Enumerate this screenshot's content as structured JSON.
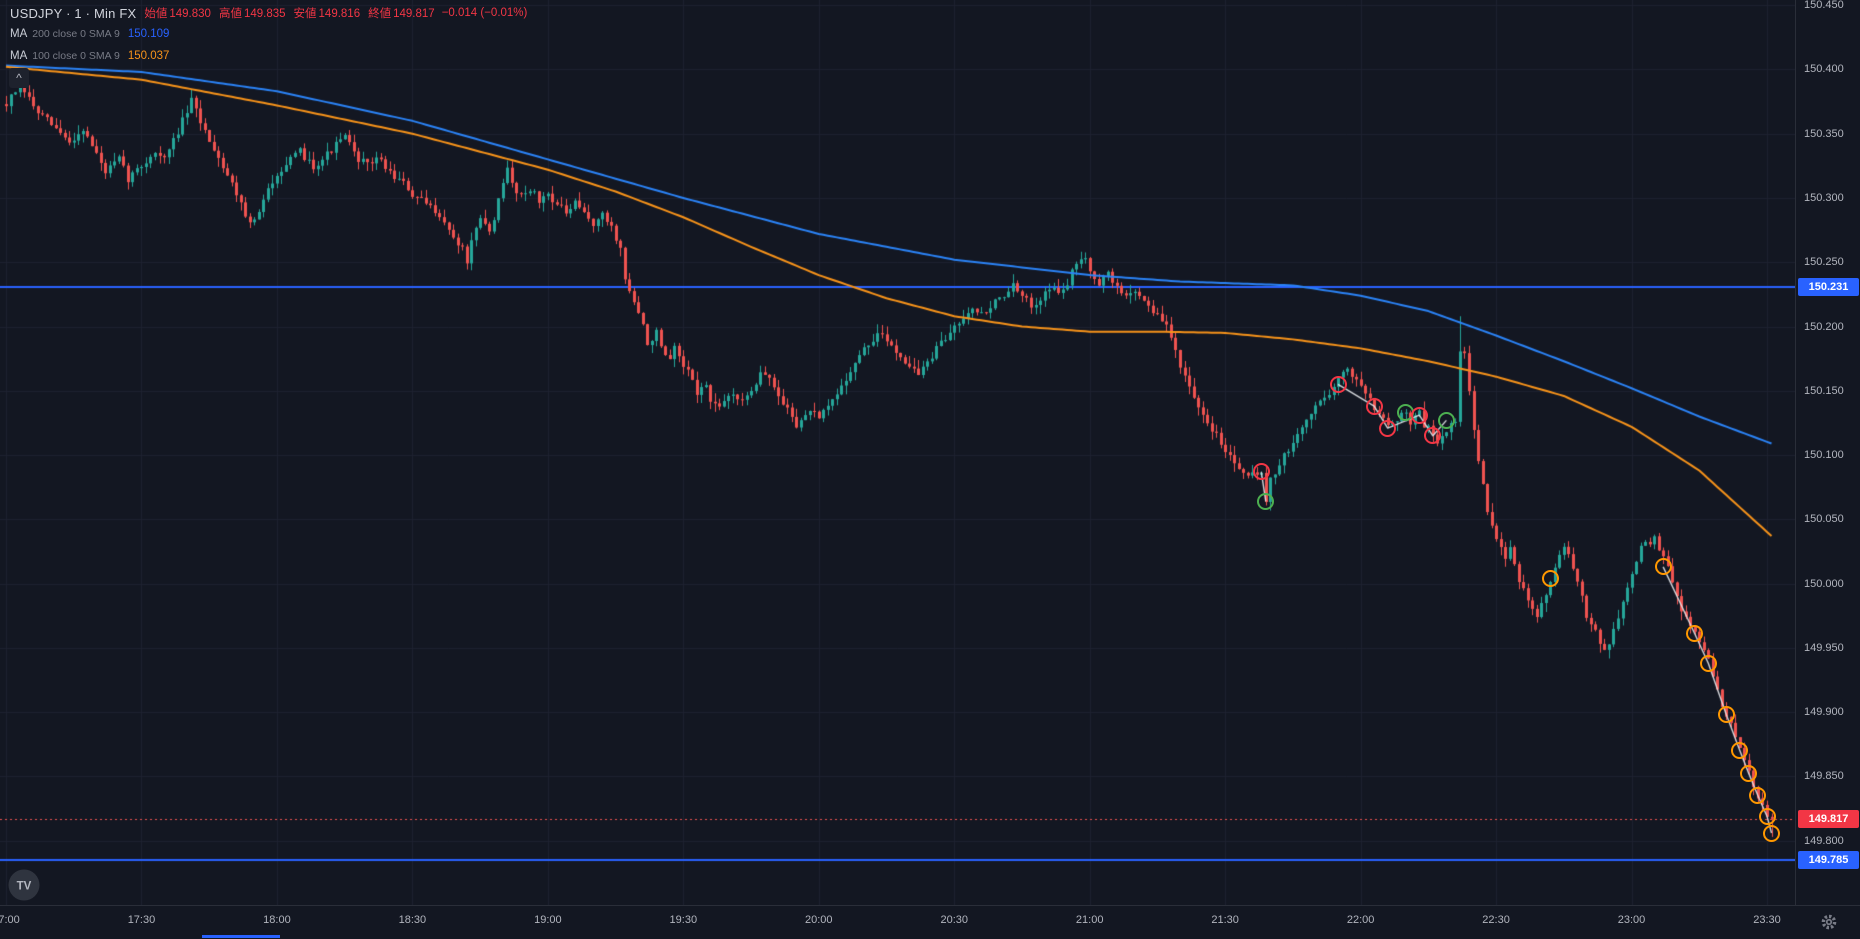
{
  "app": {
    "logo_text": "TV",
    "scroll_top_glyph": "^"
  },
  "legend": {
    "symbol_title": "USDJPY · 1 · Min FX",
    "ohlc": [
      {
        "label": "始値",
        "value": "149.830"
      },
      {
        "label": "高値",
        "value": "149.835"
      },
      {
        "label": "安値",
        "value": "149.816"
      },
      {
        "label": "終値",
        "value": "149.817"
      }
    ],
    "change": "−0.014 (−0.01%)",
    "indicators": [
      {
        "name": "MA",
        "params": "200 close 0 SMA 9",
        "value": "150.109"
      },
      {
        "name": "MA",
        "params": "100 close 0 SMA 9",
        "value": "150.037"
      }
    ]
  },
  "price_axis": {
    "ticks": [
      "150.450",
      "150.400",
      "150.350",
      "150.300",
      "150.250",
      "150.200",
      "150.150",
      "150.100",
      "150.050",
      "150.000",
      "149.950",
      "149.900",
      "149.850",
      "149.800"
    ],
    "labels": [
      {
        "value": "150.231",
        "bg": "#2962ff",
        "type": "hline"
      },
      {
        "value": "149.817",
        "bg": "#f23645",
        "type": "last-price"
      },
      {
        "value": "149.785",
        "bg": "#2962ff",
        "type": "hline"
      }
    ]
  },
  "time_axis": {
    "ticks": [
      "17:00",
      "17:30",
      "18:00",
      "18:30",
      "19:00",
      "19:30",
      "20:00",
      "20:30",
      "21:00",
      "21:30",
      "22:00",
      "22:30",
      "23:00",
      "23:30"
    ]
  },
  "chart_data": {
    "type": "candlestick",
    "symbol": "USDJPY",
    "interval_minutes": 1,
    "x_start": "17:00",
    "x_end": "23:30",
    "minutes_span": 391,
    "price_range": [
      149.75,
      150.454
    ],
    "grid_step": 0.05,
    "hlines": [
      150.231,
      149.785
    ],
    "last_price": 149.817,
    "spike": {
      "t": 322,
      "high": 150.208
    },
    "colors": {
      "up": "#26a69a",
      "down": "#ef5350",
      "ma200": "#2b83f6",
      "ma100": "#f7931a",
      "hline": "#2962ff",
      "last_line": "#ef5350",
      "grid": "#1e2230",
      "marker_red": "#f23645",
      "marker_green": "#4caf50",
      "marker_orange": "#ff9800",
      "trade_line": "#e8eaed"
    },
    "close_path": [
      [
        0,
        150.373
      ],
      [
        3,
        150.388
      ],
      [
        7,
        150.366
      ],
      [
        10,
        150.357
      ],
      [
        14,
        150.343
      ],
      [
        17,
        150.354
      ],
      [
        20,
        150.334
      ],
      [
        22,
        150.32
      ],
      [
        25,
        150.33
      ],
      [
        27,
        150.315
      ],
      [
        30,
        150.325
      ],
      [
        33,
        150.336
      ],
      [
        35,
        150.33
      ],
      [
        38,
        150.352
      ],
      [
        41,
        150.375
      ],
      [
        44,
        150.352
      ],
      [
        46,
        150.339
      ],
      [
        48,
        150.325
      ],
      [
        50,
        150.311
      ],
      [
        52,
        150.297
      ],
      [
        54,
        150.279
      ],
      [
        56,
        150.288
      ],
      [
        58,
        150.306
      ],
      [
        60,
        150.32
      ],
      [
        63,
        150.329
      ],
      [
        65,
        150.336
      ],
      [
        68,
        150.325
      ],
      [
        71,
        150.334
      ],
      [
        75,
        150.348
      ],
      [
        77,
        150.334
      ],
      [
        80,
        150.325
      ],
      [
        82,
        150.332
      ],
      [
        85,
        150.32
      ],
      [
        88,
        150.311
      ],
      [
        90,
        150.302
      ],
      [
        93,
        150.295
      ],
      [
        96,
        150.288
      ],
      [
        98,
        150.274
      ],
      [
        101,
        150.26
      ],
      [
        102,
        150.251
      ],
      [
        103,
        150.265
      ],
      [
        105,
        150.283
      ],
      [
        107,
        150.274
      ],
      [
        109,
        150.297
      ],
      [
        111,
        150.323
      ],
      [
        112,
        150.311
      ],
      [
        114,
        150.302
      ],
      [
        116,
        150.308
      ],
      [
        118,
        150.297
      ],
      [
        120,
        150.304
      ],
      [
        122,
        150.295
      ],
      [
        124,
        150.288
      ],
      [
        126,
        150.295
      ],
      [
        128,
        150.288
      ],
      [
        130,
        150.28
      ],
      [
        132,
        150.286
      ],
      [
        134,
        150.278
      ],
      [
        136,
        150.26
      ],
      [
        137,
        150.237
      ],
      [
        139,
        150.219
      ],
      [
        141,
        150.2
      ],
      [
        142,
        150.186
      ],
      [
        144,
        150.196
      ],
      [
        145,
        150.182
      ],
      [
        147,
        150.172
      ],
      [
        148,
        150.182
      ],
      [
        150,
        150.168
      ],
      [
        152,
        150.159
      ],
      [
        153,
        150.149
      ],
      [
        155,
        150.154
      ],
      [
        156,
        150.142
      ],
      [
        158,
        150.135
      ],
      [
        159,
        150.142
      ],
      [
        161,
        150.149
      ],
      [
        163,
        150.14
      ],
      [
        164,
        150.147
      ],
      [
        166,
        150.157
      ],
      [
        167,
        150.166
      ],
      [
        169,
        150.16
      ],
      [
        170,
        150.151
      ],
      [
        172,
        150.14
      ],
      [
        174,
        150.131
      ],
      [
        175,
        150.124
      ],
      [
        177,
        150.129
      ],
      [
        178,
        150.136
      ],
      [
        180,
        150.126
      ],
      [
        181,
        150.133
      ],
      [
        183,
        150.142
      ],
      [
        185,
        150.154
      ],
      [
        187,
        150.166
      ],
      [
        189,
        150.177
      ],
      [
        191,
        150.186
      ],
      [
        193,
        150.194
      ],
      [
        196,
        150.186
      ],
      [
        198,
        150.177
      ],
      [
        200,
        150.17
      ],
      [
        202,
        150.163
      ],
      [
        204,
        150.172
      ],
      [
        206,
        150.182
      ],
      [
        208,
        150.191
      ],
      [
        210,
        150.2
      ],
      [
        212,
        150.209
      ],
      [
        214,
        150.216
      ],
      [
        216,
        150.209
      ],
      [
        219,
        150.219
      ],
      [
        221,
        150.225
      ],
      [
        223,
        150.231
      ],
      [
        225,
        150.223
      ],
      [
        227,
        150.216
      ],
      [
        229,
        150.223
      ],
      [
        231,
        150.231
      ],
      [
        233,
        150.225
      ],
      [
        235,
        150.234
      ],
      [
        237,
        150.249
      ],
      [
        239,
        150.256
      ],
      [
        240,
        150.244
      ],
      [
        242,
        150.234
      ],
      [
        244,
        150.24
      ],
      [
        246,
        150.231
      ],
      [
        248,
        150.223
      ],
      [
        250,
        150.228
      ],
      [
        252,
        150.221
      ],
      [
        254,
        150.212
      ],
      [
        257,
        150.2
      ],
      [
        259,
        150.182
      ],
      [
        261,
        150.16
      ],
      [
        263,
        150.142
      ],
      [
        265,
        150.129
      ],
      [
        267,
        150.12
      ],
      [
        269,
        150.111
      ],
      [
        271,
        150.099
      ],
      [
        273,
        150.091
      ],
      [
        276,
        150.085
      ],
      [
        278,
        150.087
      ],
      [
        279,
        150.066
      ],
      [
        280,
        150.08
      ],
      [
        282,
        150.094
      ],
      [
        285,
        150.108
      ],
      [
        287,
        150.122
      ],
      [
        289,
        150.133
      ],
      [
        291,
        150.142
      ],
      [
        293,
        150.149
      ],
      [
        295,
        150.159
      ],
      [
        297,
        150.166
      ],
      [
        299,
        150.16
      ],
      [
        300,
        150.154
      ],
      [
        302,
        150.145
      ],
      [
        303,
        150.138
      ],
      [
        305,
        150.129
      ],
      [
        306,
        150.122
      ],
      [
        308,
        150.129
      ],
      [
        310,
        150.133
      ],
      [
        311,
        150.126
      ],
      [
        313,
        150.133
      ],
      [
        314,
        150.124
      ],
      [
        316,
        150.117
      ],
      [
        317,
        150.111
      ],
      [
        319,
        150.12
      ],
      [
        321,
        150.126
      ],
      [
        322,
        150.18
      ],
      [
        323,
        150.177
      ],
      [
        324,
        150.149
      ],
      [
        325,
        150.122
      ],
      [
        326,
        150.094
      ],
      [
        327,
        150.075
      ],
      [
        328,
        150.057
      ],
      [
        329,
        150.043
      ],
      [
        331,
        150.031
      ],
      [
        332,
        150.02
      ],
      [
        333,
        150.028
      ],
      [
        334,
        150.016
      ],
      [
        335,
        150.004
      ],
      [
        336,
        149.994
      ],
      [
        337,
        149.985
      ],
      [
        338,
        149.979
      ],
      [
        339,
        149.974
      ],
      [
        340,
        149.983
      ],
      [
        341,
        149.994
      ],
      [
        342,
        150.004
      ],
      [
        343,
        150.013
      ],
      [
        344,
        150.022
      ],
      [
        345,
        150.028
      ],
      [
        346,
        150.02
      ],
      [
        347,
        150.011
      ],
      [
        348,
        150.0
      ],
      [
        349,
        149.988
      ],
      [
        350,
        149.976
      ],
      [
        352,
        149.965
      ],
      [
        353,
        149.956
      ],
      [
        354,
        149.948
      ],
      [
        355,
        149.954
      ],
      [
        356,
        149.963
      ],
      [
        357,
        149.974
      ],
      [
        358,
        149.985
      ],
      [
        359,
        149.997
      ],
      [
        360,
        150.009
      ],
      [
        361,
        150.018
      ],
      [
        362,
        150.027
      ],
      [
        363,
        150.034
      ],
      [
        364,
        150.029
      ],
      [
        365,
        150.037
      ],
      [
        366,
        150.027
      ],
      [
        367,
        150.02
      ],
      [
        368,
        150.011
      ],
      [
        369,
        150.0
      ],
      [
        370,
        149.99
      ],
      [
        371,
        149.981
      ],
      [
        372,
        149.974
      ],
      [
        373,
        149.967
      ],
      [
        374,
        149.961
      ],
      [
        376,
        149.951
      ],
      [
        377,
        149.939
      ],
      [
        378,
        149.928
      ],
      [
        379,
        149.917
      ],
      [
        380,
        149.906
      ],
      [
        381,
        149.898
      ],
      [
        382,
        149.889
      ],
      [
        383,
        149.88
      ],
      [
        384,
        149.871
      ],
      [
        385,
        149.862
      ],
      [
        386,
        149.852
      ],
      [
        387,
        149.843
      ],
      [
        388,
        149.834
      ],
      [
        389,
        149.825
      ],
      [
        390,
        149.818
      ],
      [
        391,
        149.817
      ]
    ],
    "ma200": [
      [
        0,
        150.403
      ],
      [
        30,
        150.398
      ],
      [
        60,
        150.383
      ],
      [
        90,
        150.36
      ],
      [
        120,
        150.33
      ],
      [
        150,
        150.3
      ],
      [
        180,
        150.272
      ],
      [
        210,
        150.252
      ],
      [
        240,
        150.24
      ],
      [
        260,
        150.235
      ],
      [
        285,
        150.232
      ],
      [
        300,
        150.224
      ],
      [
        315,
        150.212
      ],
      [
        330,
        150.193
      ],
      [
        345,
        150.173
      ],
      [
        360,
        150.152
      ],
      [
        375,
        150.13
      ],
      [
        391,
        150.109
      ]
    ],
    "ma100": [
      [
        0,
        150.402
      ],
      [
        30,
        150.392
      ],
      [
        60,
        150.372
      ],
      [
        90,
        150.35
      ],
      [
        120,
        150.322
      ],
      [
        135,
        150.305
      ],
      [
        150,
        150.285
      ],
      [
        165,
        150.262
      ],
      [
        180,
        150.24
      ],
      [
        195,
        150.222
      ],
      [
        210,
        150.208
      ],
      [
        225,
        150.2
      ],
      [
        240,
        150.196
      ],
      [
        255,
        150.196
      ],
      [
        270,
        150.195
      ],
      [
        285,
        150.19
      ],
      [
        300,
        150.183
      ],
      [
        315,
        150.173
      ],
      [
        330,
        150.161
      ],
      [
        345,
        150.146
      ],
      [
        360,
        150.122
      ],
      [
        375,
        150.088
      ],
      [
        391,
        150.037
      ]
    ],
    "markers": [
      {
        "t": 278,
        "price": 150.087,
        "color": "red"
      },
      {
        "t": 279,
        "price": 150.064,
        "color": "green"
      },
      {
        "t": 295,
        "price": 150.155,
        "color": "red"
      },
      {
        "t": 303,
        "price": 150.138,
        "color": "red"
      },
      {
        "t": 306,
        "price": 150.121,
        "color": "red"
      },
      {
        "t": 310,
        "price": 150.133,
        "color": "green"
      },
      {
        "t": 313,
        "price": 150.131,
        "color": "red"
      },
      {
        "t": 316,
        "price": 150.115,
        "color": "red"
      },
      {
        "t": 319,
        "price": 150.127,
        "color": "green"
      },
      {
        "t": 342,
        "price": 150.004,
        "color": "orange"
      },
      {
        "t": 367,
        "price": 150.013,
        "color": "orange"
      },
      {
        "t": 374,
        "price": 149.961,
        "color": "orange"
      },
      {
        "t": 377,
        "price": 149.938,
        "color": "orange"
      },
      {
        "t": 381,
        "price": 149.898,
        "color": "orange"
      },
      {
        "t": 384,
        "price": 149.87,
        "color": "orange"
      },
      {
        "t": 386,
        "price": 149.852,
        "color": "orange"
      },
      {
        "t": 388,
        "price": 149.835,
        "color": "orange"
      },
      {
        "t": 390,
        "price": 149.819,
        "color": "orange"
      },
      {
        "t": 391,
        "price": 149.806,
        "color": "orange"
      }
    ],
    "trade_lines": [
      [
        [
          278,
          150.087
        ],
        [
          279,
          150.064
        ]
      ],
      [
        [
          295,
          150.155
        ],
        [
          303,
          150.138
        ],
        [
          306,
          150.121
        ],
        [
          313,
          150.131
        ],
        [
          316,
          150.115
        ],
        [
          319,
          150.127
        ]
      ],
      [
        [
          367,
          150.013
        ],
        [
          374,
          149.961
        ],
        [
          377,
          149.938
        ],
        [
          381,
          149.898
        ],
        [
          384,
          149.87
        ],
        [
          386,
          149.852
        ],
        [
          388,
          149.835
        ],
        [
          390,
          149.819
        ],
        [
          391,
          149.806
        ]
      ]
    ]
  }
}
